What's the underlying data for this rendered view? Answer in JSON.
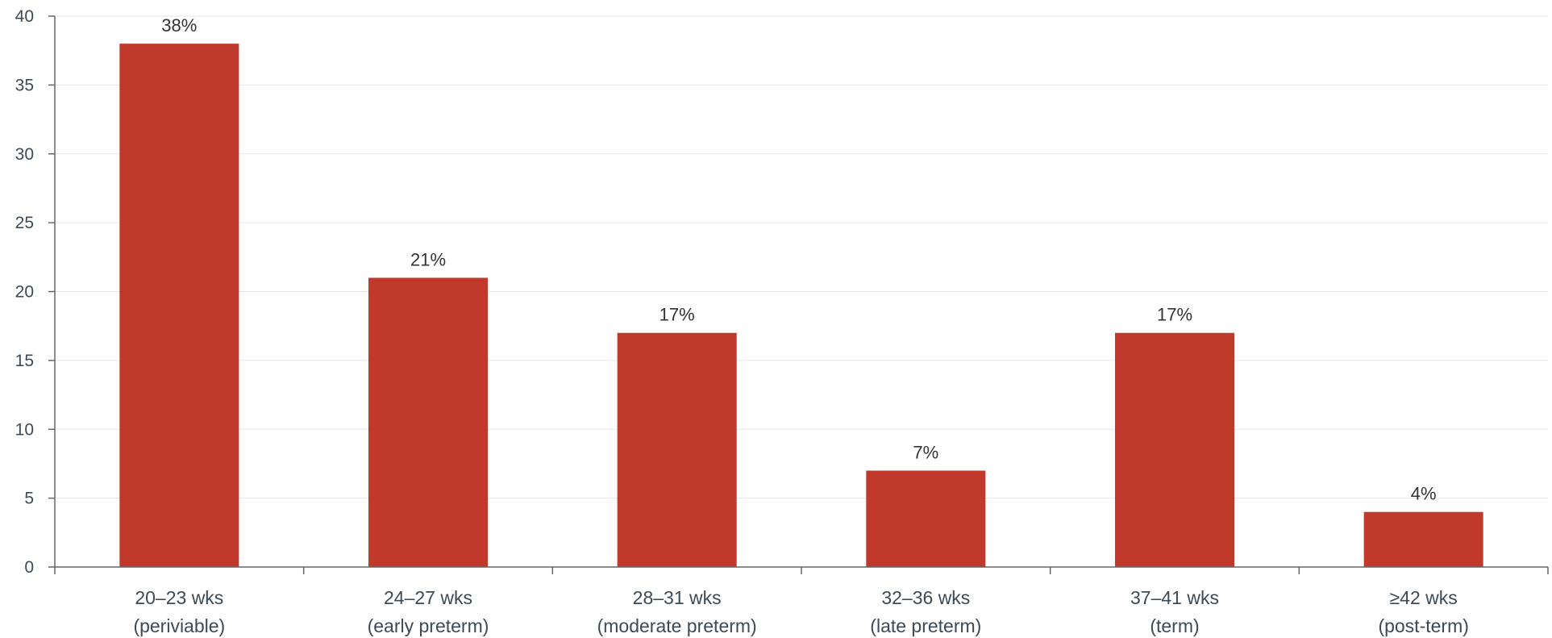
{
  "chart_data": {
    "type": "bar",
    "categories": [
      [
        "20–23 wks",
        "(periviable)"
      ],
      [
        "24–27 wks",
        "(early preterm)"
      ],
      [
        "28–31 wks",
        "(moderate preterm)"
      ],
      [
        "32–36 wks",
        "(late preterm)"
      ],
      [
        "37–41 wks",
        "(term)"
      ],
      [
        "≥42 wks",
        "(post-term)"
      ]
    ],
    "values": [
      38,
      21,
      17,
      7,
      17,
      4
    ],
    "data_labels": [
      "38%",
      "21%",
      "17%",
      "7%",
      "17%",
      "4%"
    ],
    "title": "",
    "xlabel": "",
    "ylabel": "",
    "ylim": [
      0,
      40
    ],
    "yticks": [
      0,
      5,
      10,
      15,
      20,
      25,
      30,
      35,
      40
    ],
    "grid": true,
    "bar_color": "#c0392b",
    "grid_color": "#e6e6e6",
    "axis_color": "#666666"
  }
}
